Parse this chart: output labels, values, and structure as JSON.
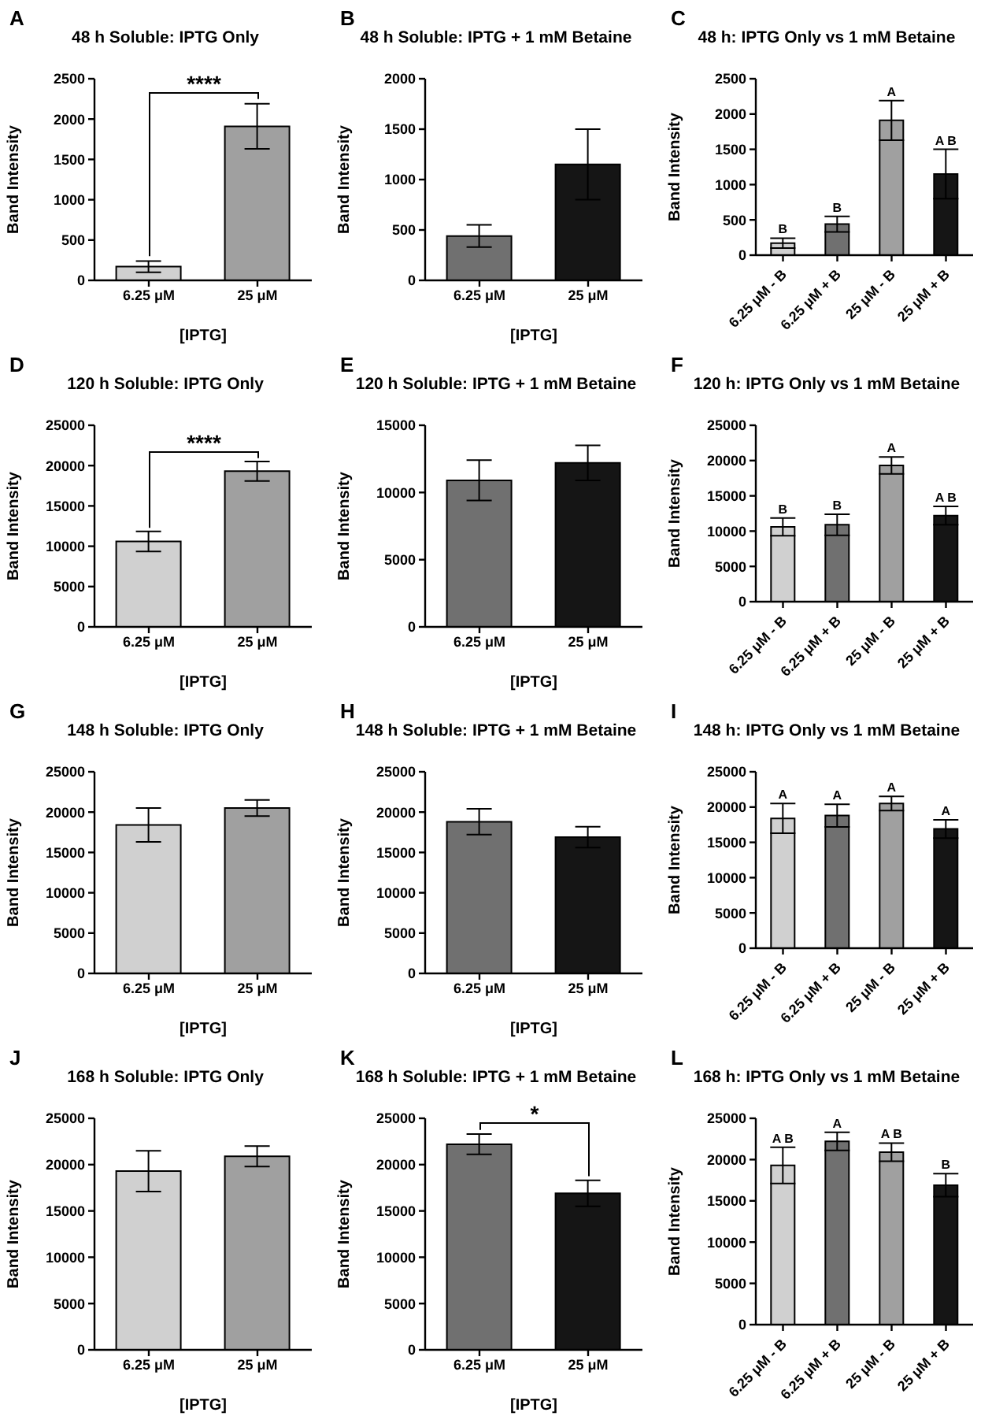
{
  "chart_data": [
    {
      "type": "bar",
      "title": "48 h Soluble: IPTG Only",
      "categories": [
        "6.25 μM",
        "25 μM"
      ],
      "values": [
        170,
        1910
      ],
      "errors": [
        70,
        280
      ],
      "colors": [
        "#d0d0d0",
        "#a0a0a0"
      ],
      "ylim": [
        0,
        2500
      ],
      "yticks": [
        0,
        500,
        1000,
        1500,
        2000,
        2500
      ],
      "xlabel": "[IPTG]",
      "ylabel": "Band Intensity",
      "annotations": [
        "A",
        "****"
      ]
    },
    {
      "type": "bar",
      "title": "48 h Soluble: IPTG + 1 mM Betaine",
      "categories": [
        "6.25 μM",
        "25 μM"
      ],
      "values": [
        440,
        1150
      ],
      "errors": [
        110,
        350
      ],
      "colors": [
        "#707070",
        "#151515"
      ],
      "ylim": [
        0,
        2000
      ],
      "yticks": [
        0,
        500,
        1000,
        1500,
        2000
      ],
      "xlabel": "[IPTG]",
      "ylabel": "Band Intensity",
      "annotations": [
        "B"
      ]
    },
    {
      "type": "bar",
      "title": "48 h: IPTG Only vs 1 mM Betaine",
      "categories": [
        "6.25 μM - B",
        "6.25 μM + B",
        "25 μM - B",
        "25 μM + B"
      ],
      "values": [
        170,
        440,
        1910,
        1150
      ],
      "errors": [
        70,
        110,
        280,
        350
      ],
      "colors": [
        "#d0d0d0",
        "#707070",
        "#a0a0a0",
        "#151515"
      ],
      "value_labels": [
        "B",
        "B",
        "A",
        "A B"
      ],
      "ylim": [
        0,
        2500
      ],
      "yticks": [
        0,
        500,
        1000,
        1500,
        2000,
        2500
      ],
      "ylabel": "Band Intensity",
      "annotations": [
        "C"
      ]
    },
    {
      "type": "bar",
      "title": "120 h Soluble: IPTG Only",
      "categories": [
        "6.25 μM",
        "25 μM"
      ],
      "values": [
        10600,
        19300
      ],
      "errors": [
        1250,
        1200
      ],
      "colors": [
        "#d0d0d0",
        "#a0a0a0"
      ],
      "ylim": [
        0,
        25000
      ],
      "yticks": [
        0,
        5000,
        10000,
        15000,
        20000,
        25000
      ],
      "xlabel": "[IPTG]",
      "ylabel": "Band Intensity",
      "annotations": [
        "D",
        "****"
      ]
    },
    {
      "type": "bar",
      "title": "120 h Soluble: IPTG + 1 mM Betaine",
      "categories": [
        "6.25 μM",
        "25 μM"
      ],
      "values": [
        10900,
        12200
      ],
      "errors": [
        1500,
        1300
      ],
      "colors": [
        "#707070",
        "#151515"
      ],
      "ylim": [
        0,
        15000
      ],
      "yticks": [
        0,
        5000,
        10000,
        15000
      ],
      "xlabel": "[IPTG]",
      "ylabel": "Band Intensity",
      "annotations": [
        "E"
      ]
    },
    {
      "type": "bar",
      "title": "120 h: IPTG Only vs 1 mM Betaine",
      "categories": [
        "6.25 μM - B",
        "6.25 μM + B",
        "25 μM - B",
        "25 μM + B"
      ],
      "values": [
        10600,
        10900,
        19300,
        12200
      ],
      "errors": [
        1250,
        1500,
        1200,
        1300
      ],
      "colors": [
        "#d0d0d0",
        "#707070",
        "#a0a0a0",
        "#151515"
      ],
      "value_labels": [
        "B",
        "B",
        "A",
        "A B"
      ],
      "ylim": [
        0,
        25000
      ],
      "yticks": [
        0,
        5000,
        10000,
        15000,
        20000,
        25000
      ],
      "ylabel": "Band Intensity",
      "annotations": [
        "F"
      ]
    },
    {
      "type": "bar",
      "title": "148 h Soluble: IPTG Only",
      "categories": [
        "6.25 μM",
        "25 μM"
      ],
      "values": [
        18400,
        20500
      ],
      "errors": [
        2100,
        1000
      ],
      "colors": [
        "#d0d0d0",
        "#a0a0a0"
      ],
      "ylim": [
        0,
        25000
      ],
      "yticks": [
        0,
        5000,
        10000,
        15000,
        20000,
        25000
      ],
      "xlabel": "[IPTG]",
      "ylabel": "Band Intensity",
      "annotations": [
        "G"
      ]
    },
    {
      "type": "bar",
      "title": "148 h Soluble: IPTG + 1 mM Betaine",
      "categories": [
        "6.25 μM",
        "25 μM"
      ],
      "values": [
        18800,
        16900
      ],
      "errors": [
        1600,
        1300
      ],
      "colors": [
        "#707070",
        "#151515"
      ],
      "ylim": [
        0,
        25000
      ],
      "yticks": [
        0,
        5000,
        10000,
        15000,
        20000,
        25000
      ],
      "xlabel": "[IPTG]",
      "ylabel": "Band Intensity",
      "annotations": [
        "H"
      ]
    },
    {
      "type": "bar",
      "title": "148 h: IPTG Only vs 1 mM Betaine",
      "categories": [
        "6.25 μM - B",
        "6.25 μM + B",
        "25 μM - B",
        "25 μM + B"
      ],
      "values": [
        18400,
        18800,
        20500,
        16900
      ],
      "errors": [
        2100,
        1600,
        1000,
        1300
      ],
      "colors": [
        "#d0d0d0",
        "#707070",
        "#a0a0a0",
        "#151515"
      ],
      "value_labels": [
        "A",
        "A",
        "A",
        "A"
      ],
      "ylim": [
        0,
        25000
      ],
      "yticks": [
        0,
        5000,
        10000,
        15000,
        20000,
        25000
      ],
      "ylabel": "Band Intensity",
      "annotations": [
        "I"
      ]
    },
    {
      "type": "bar",
      "title": "168 h Soluble: IPTG Only",
      "categories": [
        "6.25 μM",
        "25 μM"
      ],
      "values": [
        19300,
        20900
      ],
      "errors": [
        2200,
        1100
      ],
      "colors": [
        "#d0d0d0",
        "#a0a0a0"
      ],
      "ylim": [
        0,
        25000
      ],
      "yticks": [
        0,
        5000,
        10000,
        15000,
        20000,
        25000
      ],
      "xlabel": "[IPTG]",
      "ylabel": "Band Intensity",
      "annotations": [
        "J"
      ]
    },
    {
      "type": "bar",
      "title": "168 h Soluble: IPTG + 1 mM Betaine",
      "categories": [
        "6.25 μM",
        "25 μM"
      ],
      "values": [
        22200,
        16900
      ],
      "errors": [
        1100,
        1400
      ],
      "colors": [
        "#707070",
        "#151515"
      ],
      "ylim": [
        0,
        25000
      ],
      "yticks": [
        0,
        5000,
        10000,
        15000,
        20000,
        25000
      ],
      "xlabel": "[IPTG]",
      "ylabel": "Band Intensity",
      "annotations": [
        "K",
        "*"
      ]
    },
    {
      "type": "bar",
      "title": "168 h: IPTG Only vs 1 mM Betaine",
      "categories": [
        "6.25 μM - B",
        "6.25 μM + B",
        "25 μM - B",
        "25 μM + B"
      ],
      "values": [
        19300,
        22200,
        20900,
        16900
      ],
      "errors": [
        2200,
        1100,
        1100,
        1400
      ],
      "colors": [
        "#d0d0d0",
        "#707070",
        "#a0a0a0",
        "#151515"
      ],
      "value_labels": [
        "A B",
        "A",
        "A B",
        "B"
      ],
      "ylim": [
        0,
        25000
      ],
      "yticks": [
        0,
        5000,
        10000,
        15000,
        20000,
        25000
      ],
      "ylabel": "Band Intensity",
      "annotations": [
        "L"
      ]
    }
  ]
}
